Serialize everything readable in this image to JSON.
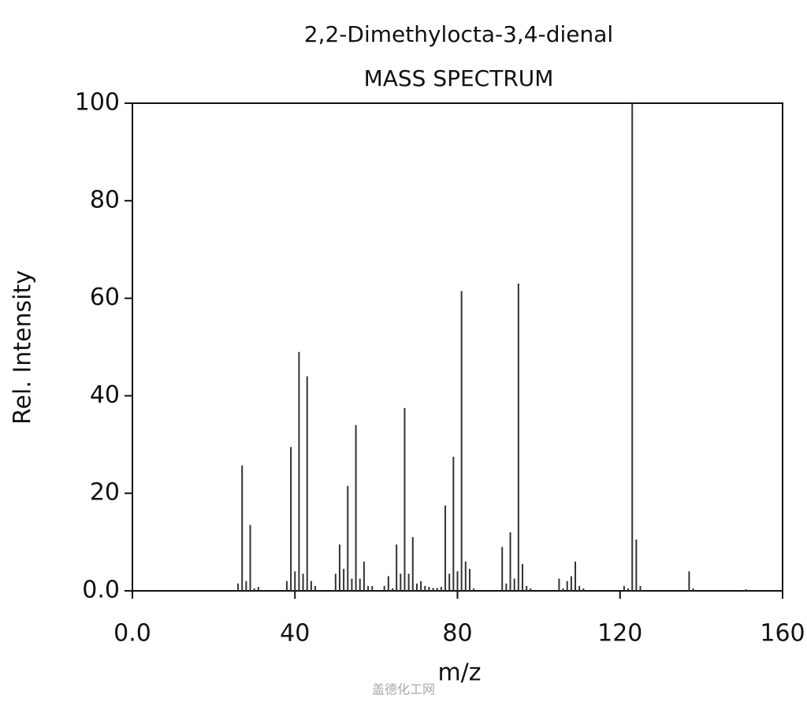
{
  "chart_data": {
    "type": "stem",
    "title": "2,2-Dimethylocta-3,4-dienal",
    "subtitle": "MASS SPECTRUM",
    "x_label": "m/z",
    "y_label": "Rel. Intensity",
    "watermark": "盖德化工网",
    "color": "#333333",
    "x": [
      26,
      27,
      28,
      29,
      30,
      31,
      38,
      39,
      40,
      41,
      42,
      43,
      44,
      45,
      50,
      51,
      52,
      53,
      54,
      55,
      56,
      57,
      58,
      59,
      62,
      63,
      64,
      65,
      66,
      67,
      68,
      69,
      70,
      71,
      72,
      73,
      74,
      75,
      76,
      77,
      78,
      79,
      80,
      81,
      82,
      83,
      84,
      91,
      92,
      93,
      94,
      95,
      96,
      97,
      98,
      105,
      106,
      107,
      108,
      109,
      110,
      111,
      121,
      122,
      123,
      124,
      125,
      137,
      138,
      151
    ],
    "values": [
      1.5,
      25.7,
      2,
      13.5,
      0.5,
      0.8,
      2,
      29.5,
      4,
      49,
      3.5,
      44,
      2,
      1,
      3.5,
      9.5,
      4.5,
      21.5,
      2.5,
      34,
      2.5,
      6,
      1,
      1,
      1,
      3,
      0.5,
      9.5,
      3.5,
      37.5,
      3.5,
      11,
      1.5,
      2,
      1,
      0.8,
      0.6,
      0.6,
      0.8,
      17.5,
      3.5,
      27.5,
      4,
      61.5,
      6,
      4.5,
      0.5,
      9,
      1.5,
      12,
      2.5,
      63,
      5.5,
      1,
      0.5,
      2.5,
      0.5,
      2,
      3,
      6,
      1,
      0.5,
      1,
      0.5,
      100,
      10.5,
      1,
      4,
      0.5,
      0.3
    ],
    "xlim": [
      0,
      160
    ],
    "ylim": [
      0,
      100
    ],
    "xticks": [
      {
        "value": 0,
        "label": "0.0"
      },
      40,
      80,
      120,
      160
    ],
    "yticks": [
      {
        "value": 0,
        "label": "0.0"
      },
      20,
      40,
      60,
      80,
      100
    ]
  }
}
